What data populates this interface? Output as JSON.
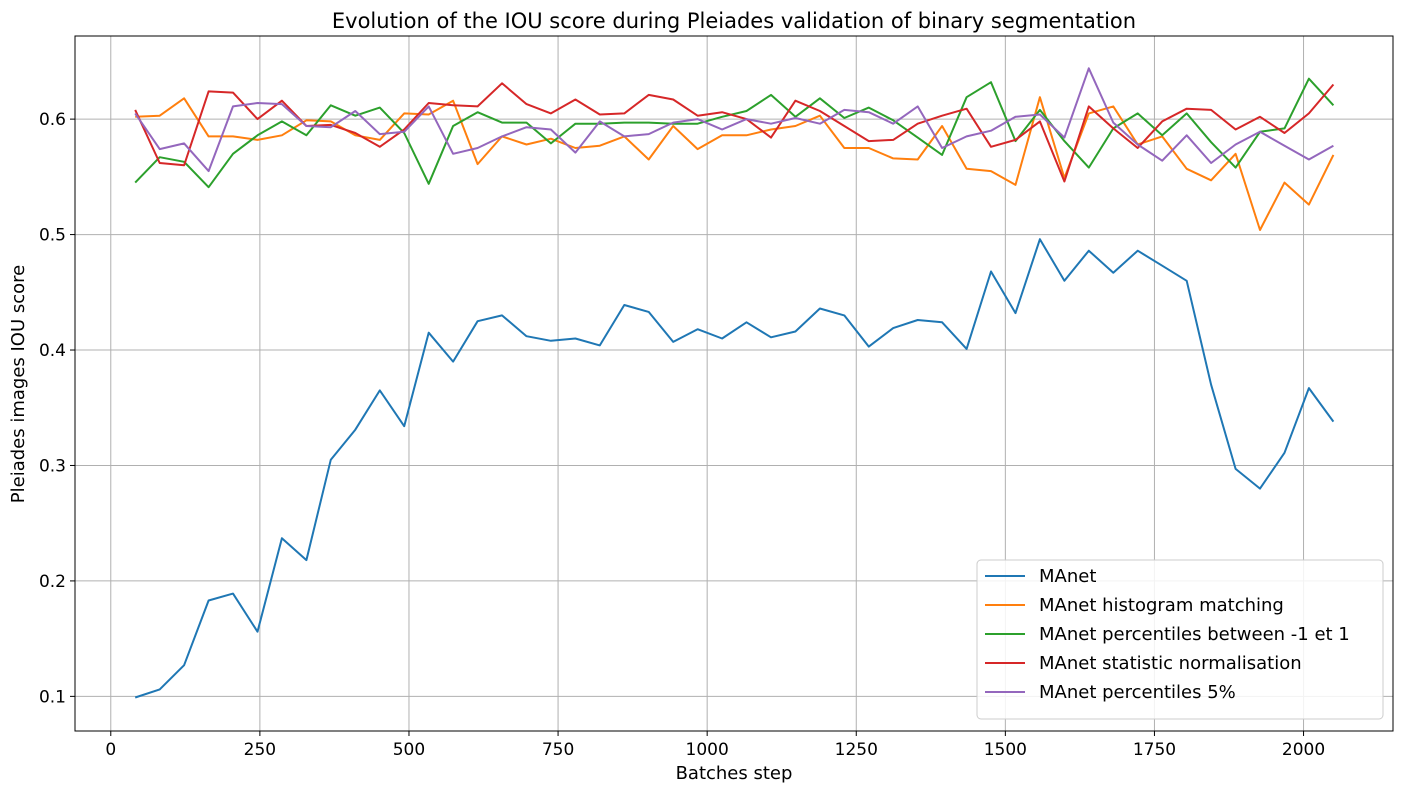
{
  "chart_data": {
    "type": "line",
    "title": "Evolution of the IOU score during Pleiades validation of binary segmentation",
    "xlabel": "Batches step",
    "ylabel": "Pleiades images IOU score",
    "xlim": [
      -60,
      2150
    ],
    "ylim": [
      0.07,
      0.672
    ],
    "xticks": [
      0,
      250,
      500,
      750,
      1000,
      1250,
      1500,
      1750,
      2000
    ],
    "yticks": [
      0.1,
      0.2,
      0.3,
      0.4,
      0.5,
      0.6
    ],
    "grid": true,
    "legend_position": "lower-right",
    "x": [
      41,
      82,
      123,
      164,
      205,
      246,
      287,
      328,
      369,
      410,
      451,
      492,
      533,
      574,
      615,
      656,
      697,
      738,
      779,
      820,
      861,
      902,
      943,
      984,
      1025,
      1066,
      1107,
      1148,
      1189,
      1230,
      1271,
      1312,
      1353,
      1394,
      1435,
      1476,
      1517,
      1558,
      1599,
      1640,
      1681,
      1722,
      1763,
      1804,
      1845,
      1886,
      1927,
      1968,
      2009,
      2050
    ],
    "series": [
      {
        "name": "MAnet",
        "color": "#1f77b4",
        "values": [
          0.099,
          0.106,
          0.127,
          0.183,
          0.189,
          0.156,
          0.237,
          0.218,
          0.305,
          0.331,
          0.365,
          0.334,
          0.415,
          0.39,
          0.425,
          0.43,
          0.412,
          0.408,
          0.41,
          0.404,
          0.439,
          0.433,
          0.407,
          0.418,
          0.41,
          0.424,
          0.411,
          0.416,
          0.436,
          0.43,
          0.403,
          0.419,
          0.426,
          0.424,
          0.401,
          0.468,
          0.432,
          0.496,
          0.46,
          0.486,
          0.467,
          0.486,
          0.473,
          0.46,
          0.37,
          0.297,
          0.28,
          0.311,
          0.367,
          0.338
        ]
      },
      {
        "name": "MAnet histogram matching",
        "color": "#ff7f0e",
        "values": [
          0.602,
          0.603,
          0.618,
          0.585,
          0.585,
          0.582,
          0.586,
          0.599,
          0.598,
          0.586,
          0.582,
          0.605,
          0.604,
          0.616,
          0.561,
          0.585,
          0.578,
          0.583,
          0.575,
          0.577,
          0.585,
          0.565,
          0.594,
          0.574,
          0.586,
          0.586,
          0.591,
          0.594,
          0.603,
          0.575,
          0.575,
          0.566,
          0.565,
          0.594,
          0.557,
          0.555,
          0.543,
          0.619,
          0.549,
          0.605,
          0.611,
          0.578,
          0.585,
          0.557,
          0.547,
          0.57,
          0.504,
          0.545,
          0.526,
          0.569
        ]
      },
      {
        "name": "MAnet percentiles between -1 et 1",
        "color": "#2ca02c",
        "values": [
          0.545,
          0.567,
          0.563,
          0.541,
          0.57,
          0.586,
          0.598,
          0.586,
          0.612,
          0.603,
          0.61,
          0.588,
          0.544,
          0.594,
          0.606,
          0.597,
          0.597,
          0.579,
          0.596,
          0.596,
          0.597,
          0.597,
          0.596,
          0.596,
          0.602,
          0.607,
          0.621,
          0.602,
          0.618,
          0.601,
          0.61,
          0.599,
          0.584,
          0.569,
          0.619,
          0.632,
          0.581,
          0.608,
          0.581,
          0.558,
          0.592,
          0.605,
          0.586,
          0.605,
          0.58,
          0.558,
          0.589,
          0.592,
          0.635,
          0.612
        ]
      },
      {
        "name": "MAnet statistic normalisation",
        "color": "#d62728",
        "values": [
          0.608,
          0.562,
          0.56,
          0.624,
          0.623,
          0.6,
          0.616,
          0.594,
          0.595,
          0.588,
          0.576,
          0.591,
          0.614,
          0.612,
          0.611,
          0.631,
          0.613,
          0.605,
          0.617,
          0.604,
          0.605,
          0.621,
          0.617,
          0.603,
          0.606,
          0.6,
          0.584,
          0.616,
          0.607,
          0.594,
          0.581,
          0.582,
          0.596,
          0.603,
          0.609,
          0.576,
          0.582,
          0.598,
          0.546,
          0.611,
          0.592,
          0.575,
          0.598,
          0.609,
          0.608,
          0.591,
          0.602,
          0.588,
          0.605,
          0.63
        ]
      },
      {
        "name": "MAnet percentiles 5%",
        "color": "#9467bd",
        "values": [
          0.605,
          0.574,
          0.579,
          0.555,
          0.611,
          0.614,
          0.613,
          0.594,
          0.593,
          0.607,
          0.587,
          0.589,
          0.611,
          0.57,
          0.575,
          0.585,
          0.593,
          0.591,
          0.571,
          0.598,
          0.585,
          0.587,
          0.597,
          0.6,
          0.591,
          0.6,
          0.596,
          0.601,
          0.596,
          0.608,
          0.606,
          0.596,
          0.611,
          0.575,
          0.585,
          0.59,
          0.602,
          0.604,
          0.584,
          0.644,
          0.597,
          0.578,
          0.564,
          0.586,
          0.562,
          0.578,
          0.589,
          0.577,
          0.565,
          0.577
        ]
      }
    ]
  }
}
